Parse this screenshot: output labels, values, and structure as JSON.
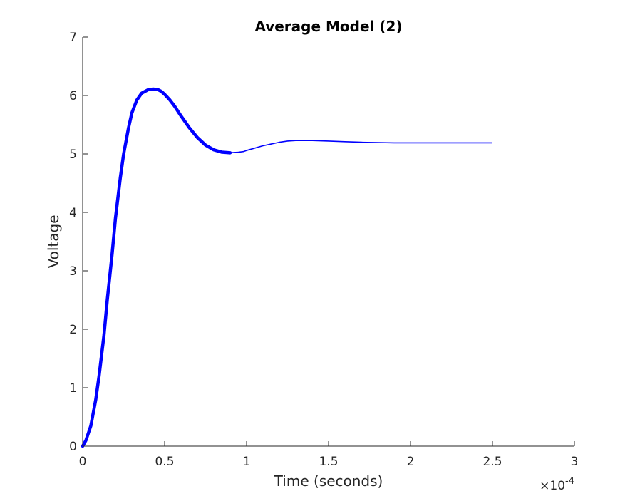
{
  "chart_data": {
    "type": "line",
    "title": "Average Model (2)",
    "xlabel": "Time (seconds)",
    "ylabel": "Voltage",
    "xlim": [
      0,
      3
    ],
    "ylim": [
      0,
      7
    ],
    "x_multiplier": {
      "times": "×",
      "base": "10",
      "exponent": "-4"
    },
    "x_ticks": [
      {
        "value": 0,
        "label": "0"
      },
      {
        "value": 0.5,
        "label": "0.5"
      },
      {
        "value": 1,
        "label": "1"
      },
      {
        "value": 1.5,
        "label": "1.5"
      },
      {
        "value": 2,
        "label": "2"
      },
      {
        "value": 2.5,
        "label": "2.5"
      },
      {
        "value": 3,
        "label": "3"
      }
    ],
    "y_ticks": [
      {
        "value": 0,
        "label": "0"
      },
      {
        "value": 1,
        "label": "1"
      },
      {
        "value": 2,
        "label": "2"
      },
      {
        "value": 3,
        "label": "3"
      },
      {
        "value": 4,
        "label": "4"
      },
      {
        "value": 5,
        "label": "5"
      },
      {
        "value": 6,
        "label": "6"
      },
      {
        "value": 7,
        "label": "7"
      }
    ],
    "grid": false,
    "series": [
      {
        "color": "#0000ff",
        "x": [
          0,
          0.02,
          0.05,
          0.08,
          0.1,
          0.13,
          0.15,
          0.18,
          0.2,
          0.23,
          0.25,
          0.28,
          0.3,
          0.33,
          0.36,
          0.4,
          0.43,
          0.46,
          0.48,
          0.5,
          0.53,
          0.56,
          0.6,
          0.65,
          0.7,
          0.75,
          0.8,
          0.85,
          0.9,
          0.95,
          0.98,
          1.0,
          1.05,
          1.1,
          1.15,
          1.2,
          1.25,
          1.3,
          1.35,
          1.4,
          1.45,
          1.5,
          1.6,
          1.7,
          1.8,
          1.9,
          2.0,
          2.1,
          2.2,
          2.3,
          2.4,
          2.5
        ],
        "y": [
          0.0,
          0.1,
          0.35,
          0.8,
          1.2,
          1.9,
          2.5,
          3.3,
          3.9,
          4.6,
          5.0,
          5.45,
          5.7,
          5.92,
          6.04,
          6.1,
          6.11,
          6.1,
          6.07,
          6.02,
          5.93,
          5.82,
          5.65,
          5.45,
          5.28,
          5.15,
          5.07,
          5.03,
          5.02,
          5.03,
          5.04,
          5.06,
          5.1,
          5.14,
          5.17,
          5.2,
          5.22,
          5.23,
          5.23,
          5.23,
          5.225,
          5.22,
          5.21,
          5.2,
          5.195,
          5.19,
          5.19,
          5.19,
          5.19,
          5.19,
          5.19,
          5.19
        ]
      }
    ]
  }
}
